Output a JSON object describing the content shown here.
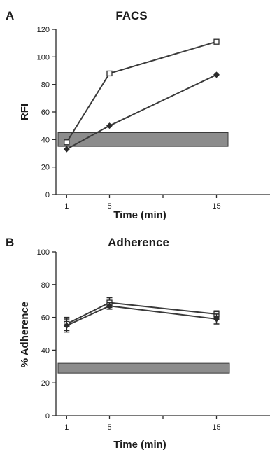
{
  "chart_data": [
    {
      "type": "line",
      "panel": "A",
      "title": "FACS",
      "xlabel": "Time   (min)",
      "ylabel": "RFI",
      "x": [
        1,
        5,
        15
      ],
      "xlim": [
        0,
        20
      ],
      "ylim": [
        0,
        120
      ],
      "yticks": [
        0,
        20,
        40,
        60,
        80,
        100,
        120
      ],
      "xticks_labeled": [
        1,
        5,
        15
      ],
      "xticks_all": [
        1,
        5,
        10,
        15
      ],
      "grid": false,
      "series": [
        {
          "marker": "open-square",
          "values": [
            38,
            88,
            111
          ]
        },
        {
          "marker": "filled-diamond",
          "values": [
            33,
            50,
            87
          ]
        }
      ],
      "band": {
        "from": 35,
        "to": 45,
        "color": "#8c8c8c"
      }
    },
    {
      "type": "line",
      "panel": "B",
      "title": "Adherence",
      "xlabel": "Time   (min)",
      "ylabel": "% Adherence",
      "x": [
        1,
        5,
        15
      ],
      "xlim": [
        0,
        20
      ],
      "ylim": [
        0,
        100
      ],
      "yticks": [
        0,
        20,
        40,
        60,
        80,
        100
      ],
      "xticks_labeled": [
        1,
        5,
        15
      ],
      "xticks_all": [
        1,
        5,
        10,
        15
      ],
      "grid": false,
      "series": [
        {
          "marker": "open-square",
          "values": [
            56,
            69,
            62
          ],
          "errors": [
            4,
            3,
            2
          ]
        },
        {
          "marker": "filled-diamond",
          "values": [
            55,
            67,
            59
          ],
          "errors": [
            4,
            2,
            3
          ]
        }
      ],
      "band": {
        "from": 26,
        "to": 32,
        "color": "#8c8c8c"
      }
    }
  ]
}
